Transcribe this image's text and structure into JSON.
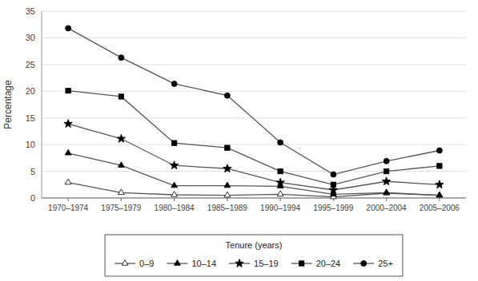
{
  "chart_data": {
    "type": "line",
    "ylabel": "Percentage",
    "legend_title": "Tenure (years)",
    "categories": [
      "1970–1974",
      "1975–1979",
      "1980–1984",
      "1985–1989",
      "1990–1994",
      "1995–1999",
      "2000–2004",
      "2005–2006"
    ],
    "series": [
      {
        "name": "0–9",
        "color": "#555555",
        "marker": "triangle-open",
        "values": [
          2.9,
          1.0,
          0.6,
          0.5,
          0.7,
          0.2,
          0.9,
          0.5
        ]
      },
      {
        "name": "10–14",
        "color": "#555555",
        "marker": "triangle",
        "values": [
          8.4,
          6.1,
          2.3,
          2.3,
          2.2,
          0.7,
          1.0,
          0.5
        ]
      },
      {
        "name": "15–19",
        "color": "#555555",
        "marker": "star",
        "values": [
          13.9,
          11.1,
          6.1,
          5.5,
          2.9,
          1.5,
          3.1,
          2.5
        ]
      },
      {
        "name": "20–24",
        "color": "#555555",
        "marker": "square",
        "values": [
          20.1,
          19.0,
          10.3,
          9.4,
          5.0,
          2.5,
          5.0,
          6.0
        ]
      },
      {
        "name": "25+",
        "color": "#555555",
        "marker": "circle",
        "values": [
          31.8,
          26.3,
          21.4,
          19.2,
          10.4,
          4.4,
          6.9,
          8.9
        ]
      }
    ],
    "ylim": [
      0,
      35
    ],
    "yticks": [
      0,
      5,
      10,
      15,
      20,
      25,
      30,
      35
    ],
    "grid": true,
    "legend": "bottom"
  }
}
